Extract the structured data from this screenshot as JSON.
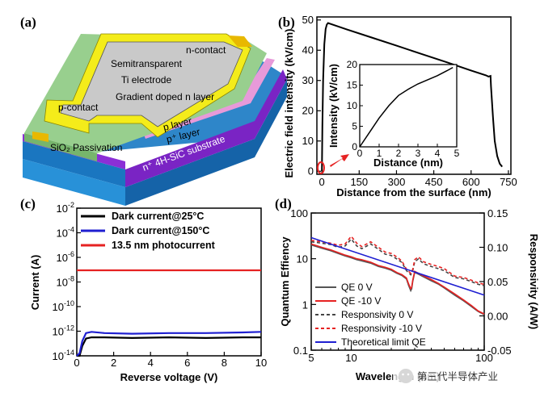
{
  "panels": {
    "a": {
      "label": "(a)",
      "texts": {
        "n_contact": "n-contact",
        "electrode": "Semitransparent\nTi electrode",
        "gradient": "Gradient doped n layer",
        "p_contact": "p-contact",
        "p_layer": "p layer",
        "pp_layer": "p⁺ layer",
        "sio2": "SiO₂ Passivation",
        "substrate": "n⁺ 4H-SiC substrate"
      }
    },
    "b": {
      "label": "(b)"
    },
    "c": {
      "label": "(c)"
    },
    "d": {
      "label": "(d)"
    }
  },
  "watermark": "第三代半导体产业",
  "chart_data": [
    {
      "id": "b",
      "type": "line",
      "xlabel": "Distance from the surface (nm)",
      "ylabel": "Electric field intensity (kV/cm)",
      "xlim": [
        -20,
        760
      ],
      "ylim": [
        -1,
        51
      ],
      "xticks": [
        0,
        150,
        300,
        450,
        600,
        750
      ],
      "yticks": [
        0,
        10,
        20,
        30,
        40,
        50
      ],
      "series": [
        {
          "color": "#000000",
          "x": [
            0,
            2,
            5,
            10,
            15,
            20,
            25,
            100,
            200,
            300,
            400,
            500,
            600,
            660,
            670,
            678,
            680,
            688,
            695,
            705,
            715,
            725
          ],
          "y": [
            0,
            15,
            30,
            42,
            47,
            48.5,
            49,
            46.9,
            44.2,
            41.5,
            38.8,
            36.1,
            33.3,
            31.7,
            31.3,
            31.5,
            28,
            18,
            10,
            5,
            2.5,
            1.5
          ]
        }
      ],
      "inset": {
        "type": "line",
        "xlabel": "Distance (nm)",
        "ylabel": "Intensity (kV/cm)",
        "xlim": [
          0,
          5
        ],
        "ylim": [
          0,
          20
        ],
        "xticks": [
          0,
          1,
          2,
          3,
          4,
          5
        ],
        "yticks": [
          0,
          5,
          10,
          15,
          20
        ],
        "x": [
          0,
          0.5,
          1,
          1.5,
          2,
          2.5,
          3,
          3.5,
          4,
          4.5,
          4.8
        ],
        "y": [
          0,
          3.5,
          7,
          10,
          12.5,
          14,
          15.3,
          16.3,
          17.3,
          18.5,
          19.3
        ]
      }
    },
    {
      "id": "c",
      "type": "line",
      "xlabel": "Reverse voltage (V)",
      "ylabel": "Current (A)",
      "yscale": "log",
      "xlim": [
        0,
        10
      ],
      "ylim_exp": [
        -14,
        -2
      ],
      "xticks": [
        0,
        2,
        4,
        6,
        8,
        10
      ],
      "yticks_exp": [
        -14,
        -12,
        -10,
        -8,
        -6,
        -4,
        -2
      ],
      "legend_position": "top-left",
      "series": [
        {
          "name": "Dark current@25°C",
          "color": "#000000",
          "x": [
            0,
            0.15,
            0.3,
            0.5,
            0.8,
            1.5,
            3,
            5,
            7,
            9,
            10
          ],
          "y_exp": [
            -14.8,
            -14,
            -13.2,
            -12.6,
            -12.5,
            -12.5,
            -12.55,
            -12.5,
            -12.55,
            -12.5,
            -12.5
          ]
        },
        {
          "name": "Dark current@150°C",
          "color": "#1f1fd1",
          "x": [
            0,
            0.15,
            0.3,
            0.5,
            0.8,
            1.5,
            3,
            5,
            7,
            9,
            10
          ],
          "y_exp": [
            -14.8,
            -13.8,
            -12.8,
            -12.15,
            -12.05,
            -12.15,
            -12.2,
            -12.15,
            -12.15,
            -12.1,
            -12.05
          ]
        },
        {
          "name": "13.5 nm photocurrent",
          "color": "#e62222",
          "x": [
            0,
            10
          ],
          "y_exp": [
            -7.05,
            -7.05
          ]
        }
      ]
    },
    {
      "id": "d",
      "type": "line",
      "xlabel": "Wavelength (nm)",
      "ylabel": "Quantum Effiency",
      "ylabel_right": "Responsivity (A/W)",
      "xscale": "log",
      "yscale": "log",
      "xlim": [
        5,
        100
      ],
      "ylim_exp": [
        -1,
        2
      ],
      "yright_lim": [
        -0.05,
        0.15
      ],
      "xticks": [
        5,
        10,
        100
      ],
      "yticks": [
        0.1,
        1,
        10,
        100
      ],
      "yright_ticks": [
        -0.05,
        0.0,
        0.05,
        0.1,
        0.15
      ],
      "legend_position": "bottom-left",
      "series": [
        {
          "name": "QE 0 V",
          "color": "#555555",
          "dash": "",
          "x": [
            5,
            6,
            7,
            8,
            9,
            10,
            11,
            12,
            14,
            16,
            18,
            20,
            22,
            24,
            26,
            27,
            28,
            28.5,
            29,
            30,
            32,
            35,
            40,
            45,
            50,
            60,
            70,
            80,
            90,
            100
          ],
          "y": [
            20,
            17,
            15,
            13,
            11.5,
            10.5,
            9.5,
            9,
            8,
            6.8,
            6.2,
            5.6,
            4.8,
            4.3,
            3.6,
            2.6,
            2.0,
            2.2,
            3.2,
            5.0,
            4.6,
            4.0,
            3.3,
            2.8,
            2.3,
            1.6,
            1.2,
            0.9,
            0.7,
            0.6
          ]
        },
        {
          "name": "QE -10 V",
          "color": "#e62222",
          "dash": "",
          "x": [
            5,
            6,
            7,
            8,
            9,
            10,
            11,
            12,
            14,
            16,
            18,
            20,
            22,
            24,
            26,
            27,
            28,
            28.5,
            29,
            30,
            32,
            35,
            40,
            45,
            50,
            60,
            70,
            80,
            90,
            100
          ],
          "y": [
            21,
            17.8,
            15.7,
            13.6,
            12,
            11,
            10,
            9.5,
            8.4,
            7.1,
            6.5,
            5.9,
            5.0,
            4.5,
            3.8,
            2.8,
            2.2,
            2.4,
            3.4,
            5.3,
            4.8,
            4.2,
            3.5,
            2.9,
            2.4,
            1.7,
            1.25,
            0.95,
            0.72,
            0.62
          ]
        },
        {
          "name": "Responsivity 0 V",
          "color": "#444444",
          "dash": "4,3",
          "x": [
            5,
            6,
            7,
            8,
            9,
            10,
            11,
            12,
            14,
            16,
            18,
            20,
            22,
            24,
            26,
            28,
            29,
            30,
            32,
            35,
            40,
            45,
            50,
            60,
            70,
            80,
            90,
            100
          ],
          "y": [
            0.108,
            0.106,
            0.104,
            0.1,
            0.102,
            0.112,
            0.102,
            0.098,
            0.105,
            0.097,
            0.09,
            0.088,
            0.083,
            0.078,
            0.066,
            0.06,
            0.066,
            0.079,
            0.083,
            0.076,
            0.072,
            0.069,
            0.066,
            0.056,
            0.054,
            0.05,
            0.046,
            0.044
          ]
        },
        {
          "name": "Responsivity -10 V",
          "color": "#e62222",
          "dash": "4,3",
          "x": [
            5,
            6,
            7,
            8,
            9,
            10,
            11,
            12,
            14,
            16,
            18,
            20,
            22,
            24,
            26,
            28,
            29,
            30,
            32,
            35,
            40,
            45,
            50,
            60,
            70,
            80,
            90,
            100
          ],
          "y": [
            0.11,
            0.108,
            0.106,
            0.103,
            0.105,
            0.116,
            0.106,
            0.101,
            0.108,
            0.1,
            0.093,
            0.091,
            0.086,
            0.08,
            0.068,
            0.062,
            0.068,
            0.082,
            0.086,
            0.079,
            0.075,
            0.072,
            0.069,
            0.058,
            0.056,
            0.052,
            0.048,
            0.046
          ]
        },
        {
          "name": "Theoretical limit QE",
          "color": "#1f1fd1",
          "dash": "",
          "x": [
            5,
            100
          ],
          "y": [
            29,
            1.6
          ]
        }
      ]
    }
  ]
}
